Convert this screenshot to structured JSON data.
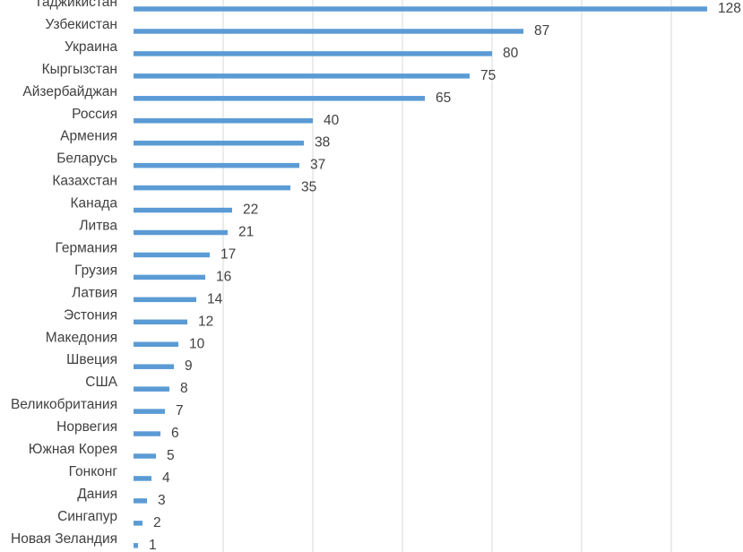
{
  "chart_data": {
    "type": "bar",
    "orientation": "horizontal",
    "title": "",
    "xlabel": "",
    "ylabel": "",
    "grid": true,
    "legend": "none",
    "bar_color": "#5b9bd5",
    "xlim": [
      0,
      135
    ],
    "categories": [
      "Таджикистан",
      "Узбекистан",
      "Украина",
      "Кыргызстан",
      "Айзербайджан",
      "Россия",
      "Армения",
      "Беларусь",
      "Казахстан",
      "Канада",
      "Литва",
      "Германия",
      "Грузия",
      "Латвия",
      "Эстония",
      "Македония",
      "Швеция",
      "США",
      "Великобритания",
      "Норвегия",
      "Южная Корея",
      "Гонконг",
      "Дания",
      "Сингапур",
      "Новая Зеландия"
    ],
    "values": [
      128,
      87,
      80,
      75,
      65,
      40,
      38,
      37,
      35,
      22,
      21,
      17,
      16,
      14,
      12,
      10,
      9,
      8,
      7,
      6,
      5,
      4,
      3,
      2,
      1
    ]
  }
}
